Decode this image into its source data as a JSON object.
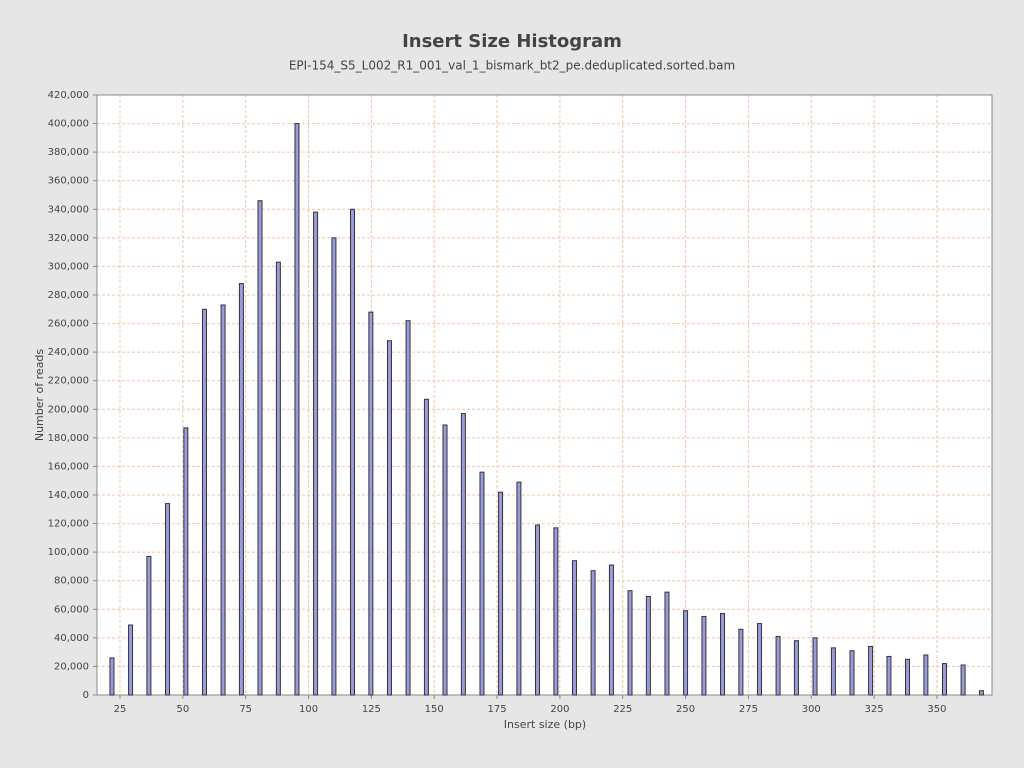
{
  "chart_data": {
    "type": "bar",
    "title": "Insert Size Histogram",
    "subtitle": "EPI-154_S5_L002_R1_001_val_1_bismark_bt2_pe.deduplicated.sorted.bam",
    "x_label": "Insert size (bp)",
    "y_label": "Number of reads",
    "x": [
      21.8,
      29.2,
      36.5,
      43.9,
      51.2,
      58.6,
      66.0,
      73.3,
      80.7,
      88.0,
      95.4,
      102.8,
      110.1,
      117.5,
      124.8,
      132.2,
      139.6,
      146.9,
      154.3,
      161.6,
      169.0,
      176.4,
      183.7,
      191.1,
      198.4,
      205.8,
      213.2,
      220.5,
      227.9,
      235.2,
      242.6,
      250.0,
      257.3,
      264.7,
      272.0,
      279.4,
      286.8,
      294.1,
      301.5,
      308.8,
      316.2,
      323.6,
      330.9,
      338.3,
      345.6,
      353.0,
      360.4,
      367.7
    ],
    "values": [
      26000,
      49000,
      97000,
      134000,
      187000,
      270000,
      273000,
      288000,
      346000,
      303000,
      400000,
      338000,
      320000,
      340000,
      268000,
      248000,
      262000,
      207000,
      189000,
      197000,
      156000,
      142000,
      149000,
      119000,
      117000,
      94000,
      87000,
      91000,
      73000,
      69000,
      72000,
      59000,
      55000,
      57000,
      46000,
      50000,
      41000,
      38000,
      40000,
      33000,
      31000,
      34000,
      27000,
      25000,
      28000,
      22000,
      21000,
      3000
    ],
    "color": "#9a9ade",
    "xlim": [
      15.85,
      371.9
    ],
    "xticks": [
      25,
      50,
      75,
      100,
      125,
      150,
      175,
      200,
      225,
      250,
      275,
      300,
      325,
      350
    ],
    "ylim": [
      0,
      420000
    ],
    "yticks": [
      0,
      {
        "value": 20000,
        "label": "20,000"
      },
      {
        "value": 40000,
        "label": "40,000"
      },
      {
        "value": 60000,
        "label": "60,000"
      },
      {
        "value": 80000,
        "label": "80,000"
      },
      {
        "value": 100000,
        "label": "100,000"
      },
      {
        "value": 120000,
        "label": "120,000"
      },
      {
        "value": 140000,
        "label": "140,000"
      },
      {
        "value": 160000,
        "label": "160,000"
      },
      {
        "value": 180000,
        "label": "180,000"
      },
      {
        "value": 200000,
        "label": "200,000"
      },
      {
        "value": 220000,
        "label": "220,000"
      },
      {
        "value": 240000,
        "label": "240,000"
      },
      {
        "value": 260000,
        "label": "260,000"
      },
      {
        "value": 280000,
        "label": "280,000"
      },
      {
        "value": 300000,
        "label": "300,000"
      },
      {
        "value": 320000,
        "label": "320,000"
      },
      {
        "value": 340000,
        "label": "340,000"
      },
      {
        "value": 360000,
        "label": "360,000"
      },
      {
        "value": 380000,
        "label": "380,000"
      },
      {
        "value": 400000,
        "label": "400,000"
      },
      {
        "value": 420000,
        "label": "420,000"
      }
    ],
    "grid": true
  }
}
